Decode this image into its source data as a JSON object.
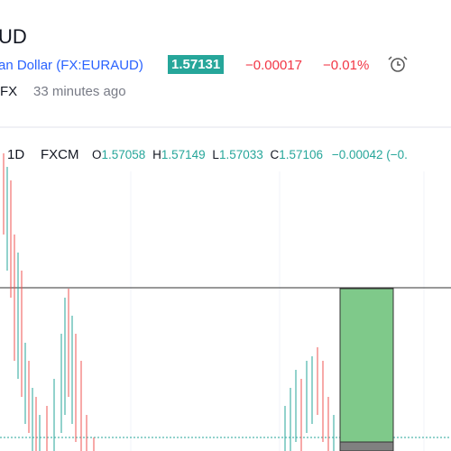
{
  "header": {
    "symbol": "UD",
    "name": "an Dollar",
    "ticker": "(FX:EURAUD)",
    "price": "1.57131",
    "change": "−0.00017",
    "change_percent": "−0.01%",
    "exchange": "FX",
    "updated": "33 minutes ago"
  },
  "legend": {
    "interval": "1D",
    "source": "FXCM",
    "open_label": "O",
    "open": "1.57058",
    "high_label": "H",
    "high": "1.57149",
    "low_label": "L",
    "low": "1.57033",
    "close_label": "C",
    "close": "1.57106",
    "change": "−0.00042 (−0."
  }
}
